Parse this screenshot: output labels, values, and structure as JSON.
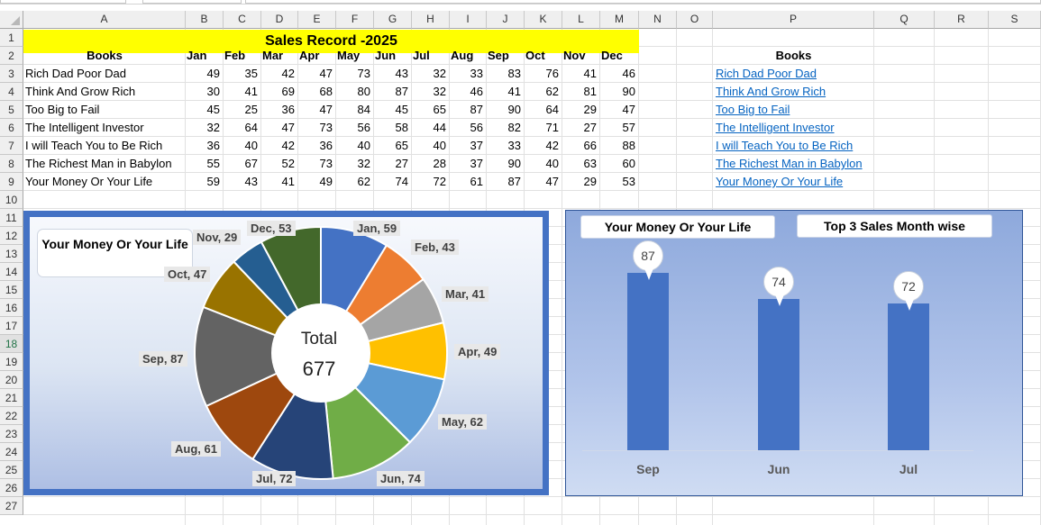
{
  "columns": [
    "A",
    "B",
    "C",
    "D",
    "E",
    "F",
    "G",
    "H",
    "I",
    "J",
    "K",
    "L",
    "M",
    "N",
    "O",
    "P",
    "Q",
    "R",
    "S"
  ],
  "rows": [
    "1",
    "2",
    "3",
    "4",
    "5",
    "6",
    "7",
    "8",
    "9",
    "10",
    "11",
    "12",
    "13",
    "14",
    "15",
    "16",
    "17",
    "18",
    "19",
    "20",
    "21",
    "22",
    "23",
    "24",
    "25",
    "26",
    "27"
  ],
  "selected_row": "18",
  "title": "Sales Record -2025",
  "table": {
    "header_books": "Books",
    "months": [
      "Jan",
      "Feb",
      "Mar",
      "Apr",
      "May",
      "Jun",
      "Jul",
      "Aug",
      "Sep",
      "Oct",
      "Nov",
      "Dec"
    ],
    "books": [
      {
        "name": "Rich Dad Poor Dad",
        "values": [
          49,
          35,
          42,
          47,
          73,
          43,
          32,
          33,
          83,
          76,
          41,
          46
        ]
      },
      {
        "name": "Think And Grow Rich",
        "values": [
          30,
          41,
          69,
          68,
          80,
          87,
          32,
          46,
          41,
          62,
          81,
          90
        ]
      },
      {
        "name": "Too Big to Fail",
        "values": [
          45,
          25,
          36,
          47,
          84,
          45,
          65,
          87,
          90,
          64,
          29,
          47
        ]
      },
      {
        "name": "The Intelligent Investor",
        "values": [
          32,
          64,
          47,
          73,
          56,
          58,
          44,
          56,
          82,
          71,
          27,
          57
        ]
      },
      {
        "name": "I will Teach You to Be Rich",
        "values": [
          36,
          40,
          42,
          36,
          40,
          65,
          40,
          37,
          33,
          42,
          66,
          88
        ]
      },
      {
        "name": "The Richest Man in Babylon",
        "values": [
          55,
          67,
          52,
          73,
          32,
          27,
          28,
          37,
          90,
          40,
          63,
          60
        ]
      },
      {
        "name": "Your Money Or Your Life",
        "values": [
          59,
          43,
          41,
          49,
          62,
          74,
          72,
          61,
          87,
          47,
          29,
          53
        ]
      }
    ]
  },
  "links": {
    "header": "Books",
    "items": [
      "Rich Dad Poor Dad",
      "Think And Grow Rich",
      "Too Big to Fail",
      "The Intelligent Investor",
      "I will Teach You to Be Rich",
      "The Richest Man in Babylon",
      "Your Money Or Your Life"
    ]
  },
  "chart_data": [
    {
      "type": "pie",
      "title": "Your Money Or Your Life",
      "categories": [
        "Jan",
        "Feb",
        "Mar",
        "Apr",
        "May",
        "Jun",
        "Jul",
        "Aug",
        "Sep",
        "Oct",
        "Nov",
        "Dec"
      ],
      "values": [
        59,
        43,
        41,
        49,
        62,
        74,
        72,
        61,
        87,
        47,
        29,
        53
      ],
      "labels": [
        "Jan, 59",
        "Feb, 43",
        "Mar, 41",
        "Apr, 49",
        "May, 62",
        "Jun, 74",
        "Jul, 72",
        "Aug, 61",
        "Sep, 87",
        "Oct, 47",
        "Nov, 29",
        "Dec, 53"
      ],
      "colors": [
        "#4472c4",
        "#ed7d31",
        "#a5a5a5",
        "#ffc000",
        "#5b9bd5",
        "#70ad47",
        "#264478",
        "#9e480e",
        "#636363",
        "#997300",
        "#255e91",
        "#43682b"
      ],
      "center_label": "Total",
      "center_value": "677"
    },
    {
      "type": "bar",
      "title": "Your Money Or Your Life",
      "subtitle": "Top 3 Sales Month wise",
      "categories": [
        "Sep",
        "Jun",
        "Jul"
      ],
      "values": [
        87,
        74,
        72
      ],
      "color": "#4472c4"
    }
  ]
}
